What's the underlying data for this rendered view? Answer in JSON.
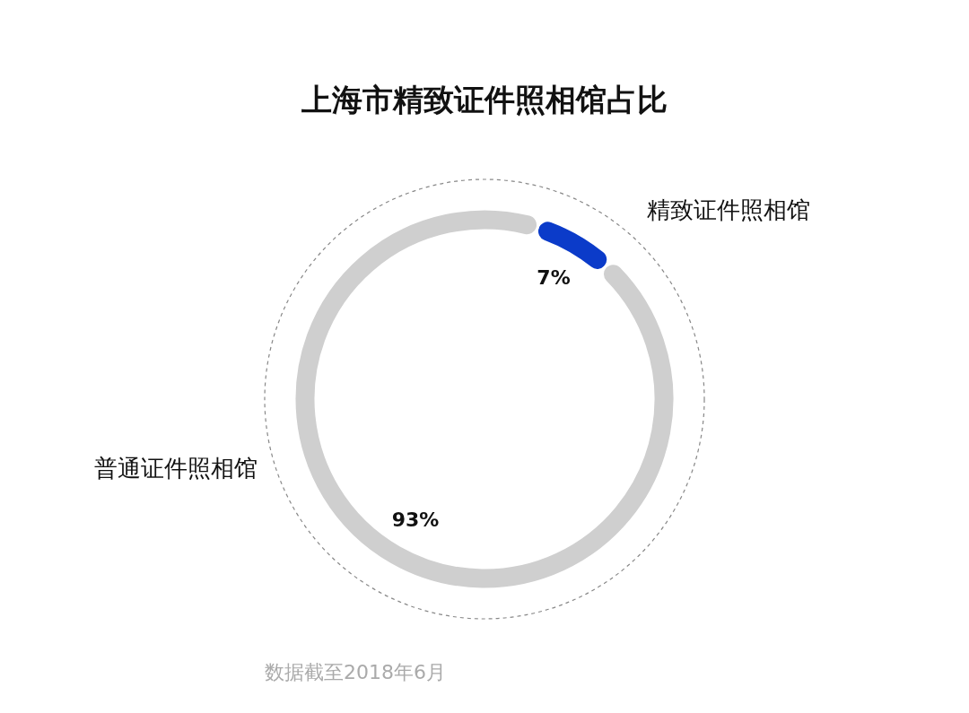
{
  "chart_data": {
    "type": "donut",
    "title": "上海市精致证件照相馆占比",
    "categories": [
      "精致证件照相馆",
      "普通证件照相馆"
    ],
    "values": [
      7,
      93
    ],
    "colors": [
      "#0b3bc9",
      "#cfcfcf"
    ],
    "value_labels": [
      "7%",
      "93%"
    ],
    "annotations": [
      "数据截至2018年6月"
    ],
    "legend": false
  }
}
